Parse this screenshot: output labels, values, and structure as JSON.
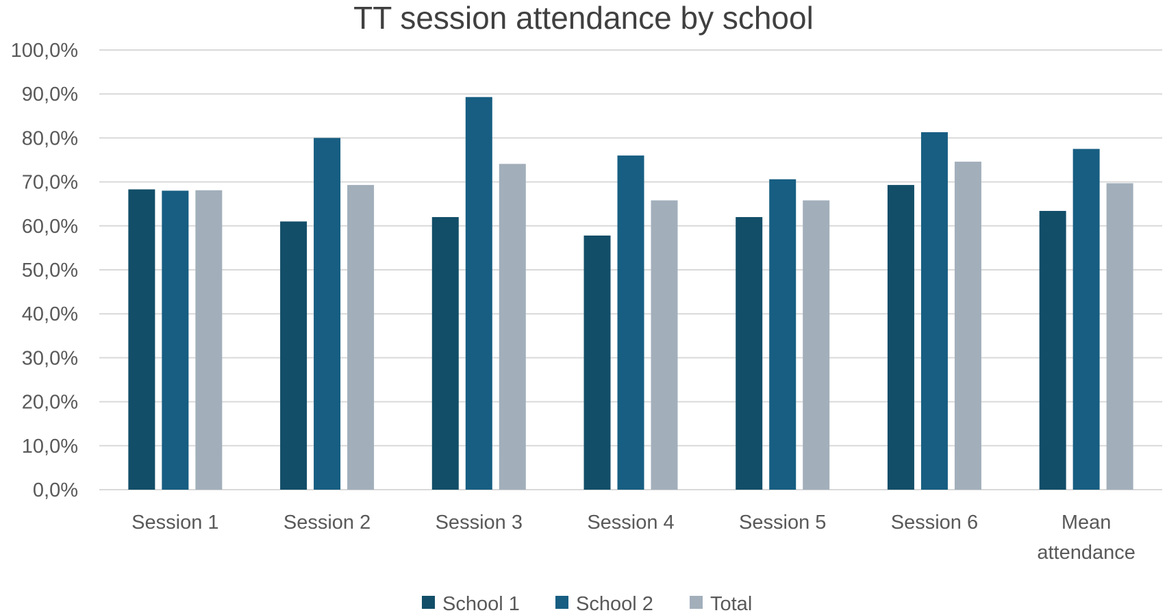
{
  "chart_data": {
    "type": "bar",
    "title": "TT session attendance by school",
    "categories": [
      [
        "Session 1"
      ],
      [
        "Session 2"
      ],
      [
        "Session 3"
      ],
      [
        "Session 4"
      ],
      [
        "Session 5"
      ],
      [
        "Session 6"
      ],
      [
        "Mean",
        "attendance"
      ]
    ],
    "series": [
      {
        "name": "School 1",
        "color": "#124e68",
        "values": [
          68.3,
          61.0,
          62.0,
          57.8,
          62.0,
          69.3,
          63.4
        ]
      },
      {
        "name": "School 2",
        "color": "#175e82",
        "values": [
          68.0,
          80.0,
          89.3,
          76.0,
          70.6,
          81.3,
          77.5
        ]
      },
      {
        "name": "Total",
        "color": "#a2afbb",
        "values": [
          68.1,
          69.3,
          74.1,
          65.8,
          65.8,
          74.6,
          69.7
        ]
      }
    ],
    "ylim": [
      0,
      100
    ],
    "ytick_step": 10,
    "y_ticks": [
      "0,0%",
      "10,0%",
      "20,0%",
      "30,0%",
      "40,0%",
      "50,0%",
      "60,0%",
      "70,0%",
      "80,0%",
      "90,0%",
      "100,0%"
    ],
    "xlabel": "",
    "ylabel": "",
    "grid": true,
    "legend_position": "bottom-center"
  }
}
